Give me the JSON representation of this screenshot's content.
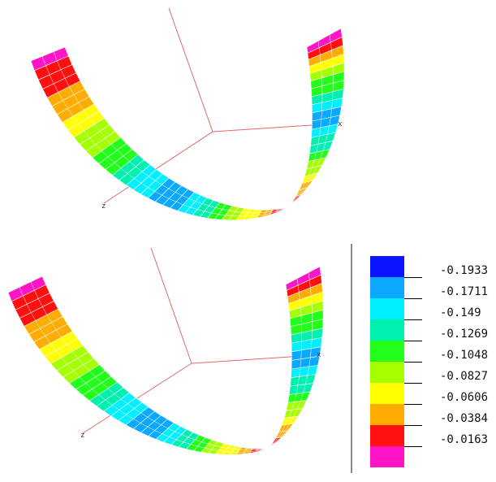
{
  "colors": {
    "axis": "#e06a6a",
    "mesh": "#ffffff",
    "scale": [
      "#0a14ff",
      "#0aa8ff",
      "#00f0ff",
      "#00f0b0",
      "#22ff1a",
      "#a6ff00",
      "#ffff00",
      "#ffac00",
      "#ff1010",
      "#ff14c8"
    ]
  },
  "top_view": {
    "axis_x": "x",
    "axis_z": "z"
  },
  "bottom_view": {
    "axis_x": "x",
    "axis_z": "z"
  },
  "legend": {
    "values": [
      "-0.1933",
      "-0.1711",
      "-0.149",
      "-0.1269",
      "-0.1048",
      "-0.0827",
      "-0.0606",
      "-0.0384",
      "-0.0163"
    ]
  }
}
